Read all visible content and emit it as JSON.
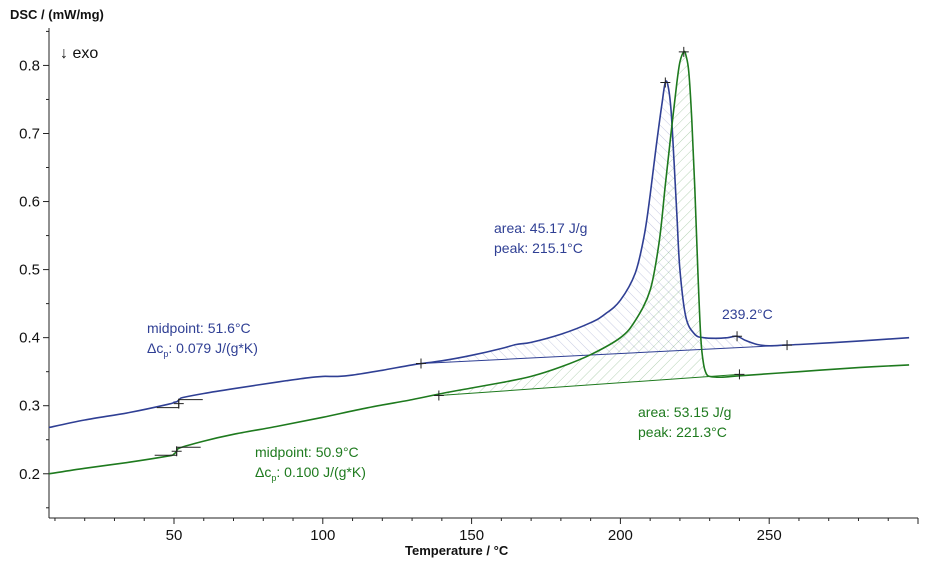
{
  "chart_data": {
    "type": "line",
    "title": "",
    "ylabel": "DSC / (mW/mg)",
    "xlabel": "Temperature / °C",
    "exo_label": "↓ exo",
    "xlim": [
      8,
      300
    ],
    "ylim": [
      0.135,
      0.855
    ],
    "xticks": [
      50,
      100,
      150,
      200,
      250
    ],
    "yticks": [
      0.2,
      0.3,
      0.4,
      0.5,
      0.6,
      0.7,
      0.8
    ],
    "colors": {
      "blue": "#2f3f94",
      "green": "#1e7a1e",
      "axis": "#222222"
    },
    "series": [
      {
        "name": "blue",
        "color": "#2f3f94",
        "x": [
          8,
          20,
          35,
          48,
          50,
          51,
          52,
          53,
          60,
          70,
          85,
          95,
          100,
          105,
          110,
          120,
          130,
          140,
          150,
          160,
          165,
          170,
          180,
          190,
          195,
          200,
          205,
          208,
          210,
          212,
          214,
          215.1,
          216,
          217,
          218,
          219,
          220,
          222,
          225,
          228,
          232,
          236,
          239.2,
          242,
          246,
          250,
          255,
          260,
          280,
          297
        ],
        "y": [
          0.268,
          0.279,
          0.29,
          0.302,
          0.305,
          0.306,
          0.31,
          0.312,
          0.318,
          0.325,
          0.335,
          0.341,
          0.343,
          0.343,
          0.345,
          0.352,
          0.36,
          0.366,
          0.374,
          0.384,
          0.39,
          0.393,
          0.405,
          0.422,
          0.435,
          0.455,
          0.495,
          0.55,
          0.61,
          0.68,
          0.745,
          0.775,
          0.77,
          0.735,
          0.66,
          0.58,
          0.5,
          0.43,
          0.405,
          0.4,
          0.399,
          0.4,
          0.402,
          0.396,
          0.39,
          0.388,
          0.389,
          0.39,
          0.395,
          0.4
        ]
      },
      {
        "name": "green",
        "color": "#1e7a1e",
        "x": [
          8,
          20,
          35,
          48,
          50,
          50.9,
          52,
          60,
          70,
          85,
          100,
          115,
          130,
          140,
          150,
          160,
          170,
          180,
          190,
          200,
          205,
          210,
          213,
          215,
          217,
          219,
          220,
          221.3,
          222,
          223,
          224,
          225,
          226,
          227,
          228,
          229,
          230,
          232,
          235,
          240,
          260,
          280,
          297
        ],
        "y": [
          0.2,
          0.208,
          0.217,
          0.226,
          0.229,
          0.233,
          0.238,
          0.248,
          0.258,
          0.27,
          0.283,
          0.297,
          0.309,
          0.318,
          0.326,
          0.334,
          0.343,
          0.357,
          0.375,
          0.4,
          0.425,
          0.47,
          0.54,
          0.62,
          0.7,
          0.775,
          0.805,
          0.82,
          0.815,
          0.79,
          0.72,
          0.62,
          0.5,
          0.4,
          0.36,
          0.346,
          0.343,
          0.342,
          0.342,
          0.344,
          0.35,
          0.356,
          0.36
        ]
      }
    ],
    "baselines": [
      {
        "name": "blue-peak-baseline",
        "color": "#2f3f94",
        "from": [
          133,
          0.362
        ],
        "to": [
          256,
          0.389
        ]
      },
      {
        "name": "green-peak-baseline",
        "color": "#1e7a1e",
        "from": [
          139,
          0.315
        ],
        "to": [
          240,
          0.346
        ]
      }
    ],
    "markers": [
      {
        "name": "blue-baseline-start-marker",
        "x": 133,
        "y": 0.362
      },
      {
        "name": "blue-baseline-end-marker",
        "x": 256,
        "y": 0.389
      },
      {
        "name": "blue-peak-marker",
        "x": 215.1,
        "y": 0.775
      },
      {
        "name": "blue-small-peak-marker",
        "x": 239.2,
        "y": 0.402
      },
      {
        "name": "blue-midpoint-marker",
        "x": 51.6,
        "y": 0.303
      },
      {
        "name": "green-baseline-start-marker",
        "x": 139,
        "y": 0.315
      },
      {
        "name": "green-baseline-end-marker",
        "x": 240,
        "y": 0.346
      },
      {
        "name": "green-peak-marker",
        "x": 221.3,
        "y": 0.82
      },
      {
        "name": "green-midpoint-marker",
        "x": 50.9,
        "y": 0.233
      }
    ],
    "annotations": {
      "blue_glass": {
        "line1": "midpoint: 51.6°C",
        "line2_prefix": "Δc",
        "line2_sub": "p",
        "line2_rest": ": 0.079 J/(g*K)"
      },
      "blue_peak": {
        "line1": "area:  45.17 J/g",
        "line2": "peak:  215.1°C"
      },
      "blue_small_peak": "239.2°C",
      "green_glass": {
        "line1": "midpoint: 50.9°C",
        "line2_prefix": "Δc",
        "line2_sub": "p",
        "line2_rest": ": 0.100 J/(g*K)"
      },
      "green_peak": {
        "line1": "area: 53.15 J/g",
        "line2": "peak: 221.3°C"
      }
    }
  }
}
